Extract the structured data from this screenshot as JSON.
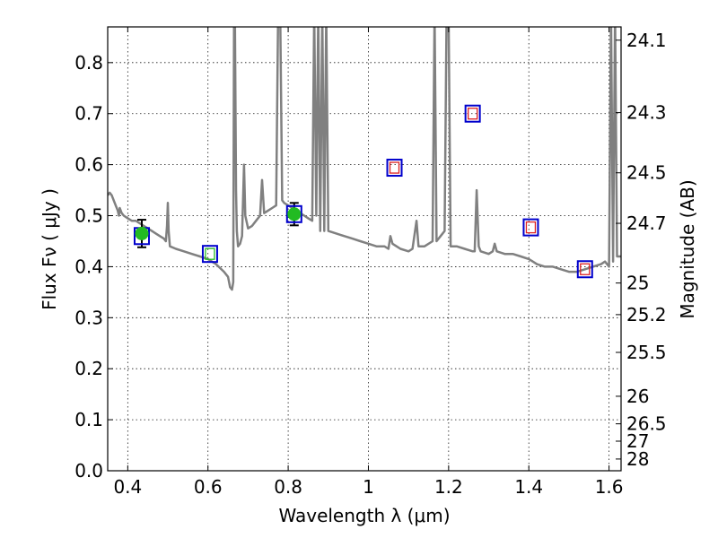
{
  "chart_data": {
    "type": "scatter",
    "xlabel": "Wavelength  λ (μm)",
    "ylabel": "Flux  Fν  ( μJy )",
    "right_ylabel": "Magnitude (AB)",
    "xlim": [
      0.35,
      1.63
    ],
    "ylim": [
      0.0,
      0.87
    ],
    "x_ticks": [
      0.4,
      0.6,
      0.8,
      1.0,
      1.2,
      1.4,
      1.6
    ],
    "x_tick_labels": [
      "0.4",
      "0.6",
      "0.8",
      "1",
      "1.2",
      "1.4",
      "1.6"
    ],
    "y_ticks": [
      0.0,
      0.1,
      0.2,
      0.3,
      0.4,
      0.5,
      0.6,
      0.7,
      0.8
    ],
    "y_tick_labels": [
      "0.0",
      "0.1",
      "0.2",
      "0.3",
      "0.4",
      "0.5",
      "0.6",
      "0.7",
      "0.8"
    ],
    "mag_ticks": [
      {
        "label": "24.1",
        "value": 0.844
      },
      {
        "label": "24.3",
        "value": 0.702
      },
      {
        "label": "24.5",
        "value": 0.584
      },
      {
        "label": "24.7",
        "value": 0.485
      },
      {
        "label": "25",
        "value": 0.368
      },
      {
        "label": "25.2",
        "value": 0.306
      },
      {
        "label": "25.5",
        "value": 0.232
      },
      {
        "label": "26",
        "value": 0.146
      },
      {
        "label": "26.5",
        "value": 0.092
      },
      {
        "label": "27",
        "value": 0.058
      },
      {
        "label": "28",
        "value": 0.023
      }
    ],
    "grid": true,
    "template_spectrum": {
      "color": "#808080",
      "points": [
        [
          0.35,
          0.54
        ],
        [
          0.355,
          0.545
        ],
        [
          0.36,
          0.54
        ],
        [
          0.365,
          0.53
        ],
        [
          0.37,
          0.52
        ],
        [
          0.375,
          0.51
        ],
        [
          0.378,
          0.5
        ],
        [
          0.38,
          0.515
        ],
        [
          0.385,
          0.505
        ],
        [
          0.39,
          0.5
        ],
        [
          0.4,
          0.495
        ],
        [
          0.41,
          0.49
        ],
        [
          0.42,
          0.49
        ],
        [
          0.43,
          0.485
        ],
        [
          0.44,
          0.48
        ],
        [
          0.45,
          0.475
        ],
        [
          0.46,
          0.47
        ],
        [
          0.47,
          0.465
        ],
        [
          0.48,
          0.46
        ],
        [
          0.49,
          0.455
        ],
        [
          0.495,
          0.45
        ],
        [
          0.498,
          0.48
        ],
        [
          0.5,
          0.525
        ],
        [
          0.502,
          0.47
        ],
        [
          0.505,
          0.44
        ],
        [
          0.52,
          0.435
        ],
        [
          0.54,
          0.43
        ],
        [
          0.56,
          0.425
        ],
        [
          0.58,
          0.42
        ],
        [
          0.6,
          0.415
        ],
        [
          0.62,
          0.405
        ],
        [
          0.64,
          0.39
        ],
        [
          0.65,
          0.38
        ],
        [
          0.655,
          0.36
        ],
        [
          0.66,
          0.355
        ],
        [
          0.663,
          0.37
        ],
        [
          0.665,
          0.9
        ],
        [
          0.667,
          0.9
        ],
        [
          0.67,
          0.55
        ],
        [
          0.672,
          0.47
        ],
        [
          0.675,
          0.44
        ],
        [
          0.68,
          0.445
        ],
        [
          0.685,
          0.46
        ],
        [
          0.69,
          0.6
        ],
        [
          0.693,
          0.5
        ],
        [
          0.7,
          0.475
        ],
        [
          0.71,
          0.48
        ],
        [
          0.72,
          0.49
        ],
        [
          0.73,
          0.5
        ],
        [
          0.735,
          0.57
        ],
        [
          0.74,
          0.505
        ],
        [
          0.75,
          0.51
        ],
        [
          0.76,
          0.515
        ],
        [
          0.77,
          0.52
        ],
        [
          0.775,
          0.9
        ],
        [
          0.78,
          0.9
        ],
        [
          0.785,
          0.53
        ],
        [
          0.79,
          0.525
        ],
        [
          0.8,
          0.52
        ],
        [
          0.81,
          0.515
        ],
        [
          0.82,
          0.51
        ],
        [
          0.83,
          0.505
        ],
        [
          0.84,
          0.5
        ],
        [
          0.85,
          0.495
        ],
        [
          0.86,
          0.49
        ],
        [
          0.865,
          0.9
        ],
        [
          0.87,
          0.5
        ],
        [
          0.875,
          0.9
        ],
        [
          0.88,
          0.47
        ],
        [
          0.885,
          0.9
        ],
        [
          0.89,
          0.47
        ],
        [
          0.895,
          0.9
        ],
        [
          0.9,
          0.47
        ],
        [
          0.92,
          0.465
        ],
        [
          0.94,
          0.46
        ],
        [
          0.96,
          0.455
        ],
        [
          0.98,
          0.45
        ],
        [
          1.0,
          0.445
        ],
        [
          1.02,
          0.44
        ],
        [
          1.04,
          0.44
        ],
        [
          1.05,
          0.435
        ],
        [
          1.055,
          0.46
        ],
        [
          1.06,
          0.445
        ],
        [
          1.07,
          0.44
        ],
        [
          1.08,
          0.435
        ],
        [
          1.1,
          0.43
        ],
        [
          1.11,
          0.435
        ],
        [
          1.12,
          0.49
        ],
        [
          1.125,
          0.44
        ],
        [
          1.14,
          0.44
        ],
        [
          1.16,
          0.45
        ],
        [
          1.165,
          0.9
        ],
        [
          1.17,
          0.45
        ],
        [
          1.18,
          0.46
        ],
        [
          1.19,
          0.47
        ],
        [
          1.195,
          0.9
        ],
        [
          1.2,
          0.9
        ],
        [
          1.205,
          0.44
        ],
        [
          1.22,
          0.44
        ],
        [
          1.24,
          0.435
        ],
        [
          1.26,
          0.43
        ],
        [
          1.265,
          0.43
        ],
        [
          1.27,
          0.55
        ],
        [
          1.275,
          0.44
        ],
        [
          1.28,
          0.43
        ],
        [
          1.3,
          0.425
        ],
        [
          1.31,
          0.43
        ],
        [
          1.315,
          0.445
        ],
        [
          1.32,
          0.43
        ],
        [
          1.34,
          0.425
        ],
        [
          1.36,
          0.425
        ],
        [
          1.38,
          0.42
        ],
        [
          1.4,
          0.415
        ],
        [
          1.41,
          0.41
        ],
        [
          1.42,
          0.405
        ],
        [
          1.44,
          0.4
        ],
        [
          1.46,
          0.4
        ],
        [
          1.48,
          0.395
        ],
        [
          1.5,
          0.39
        ],
        [
          1.52,
          0.39
        ],
        [
          1.54,
          0.395
        ],
        [
          1.56,
          0.4
        ],
        [
          1.58,
          0.405
        ],
        [
          1.59,
          0.41
        ],
        [
          1.6,
          0.4
        ],
        [
          1.605,
          0.9
        ],
        [
          1.61,
          0.41
        ],
        [
          1.615,
          0.9
        ],
        [
          1.62,
          0.42
        ],
        [
          1.63,
          0.42
        ]
      ]
    },
    "observed_fluxes": {
      "color": "#22bb22",
      "points": [
        {
          "x": 0.435,
          "y": 0.465,
          "err": 0.027
        },
        {
          "x": 0.815,
          "y": 0.503,
          "err": 0.022
        }
      ]
    },
    "model_fluxes": {
      "color": "#0000cc",
      "points": [
        {
          "x": 0.435,
          "y": 0.46
        },
        {
          "x": 0.605,
          "y": 0.425
        },
        {
          "x": 0.815,
          "y": 0.503
        },
        {
          "x": 1.065,
          "y": 0.594
        },
        {
          "x": 1.26,
          "y": 0.7
        },
        {
          "x": 1.405,
          "y": 0.477
        },
        {
          "x": 1.54,
          "y": 0.395
        }
      ]
    },
    "upper_limit_boxes": {
      "color": "#dd2222",
      "points": [
        {
          "x": 1.065,
          "y": 0.594
        },
        {
          "x": 1.26,
          "y": 0.7
        },
        {
          "x": 1.405,
          "y": 0.477
        },
        {
          "x": 1.54,
          "y": 0.395
        }
      ]
    },
    "green_open_box": {
      "color": "#22bb22",
      "points": [
        {
          "x": 0.605,
          "y": 0.425
        }
      ]
    }
  }
}
